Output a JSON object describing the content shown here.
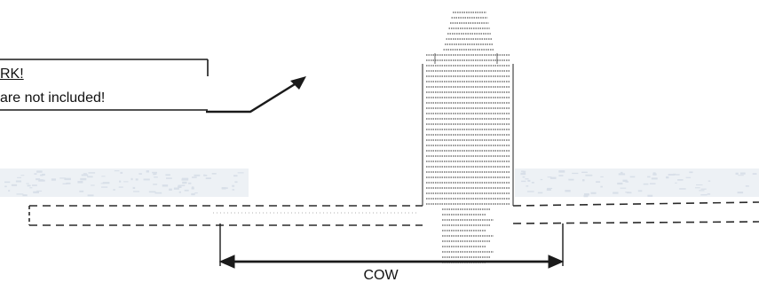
{
  "note": {
    "line1": "RK!",
    "line2": "are not included!"
  },
  "caption": "COW",
  "colors": {
    "ink": "#1a1a1a",
    "dash": "#2a2a2a",
    "faint_texture": "#b9c6d6"
  }
}
